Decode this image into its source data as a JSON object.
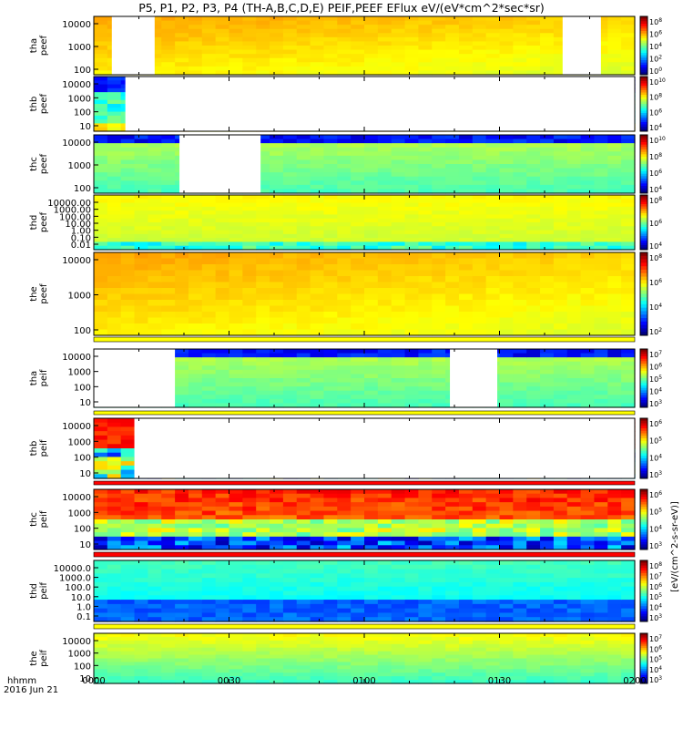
{
  "chart_data": {
    "type": "heatmap",
    "title": "P5, P1, P2, P3, P4 (TH-A,B,C,D,E) PEIF,PEEF EFlux eV/(eV*cm^2*sec*sr)",
    "x_axis": {
      "ticks": [
        "0000",
        "0030",
        "0100",
        "0130",
        "0200"
      ],
      "range_minutes": [
        0,
        120
      ],
      "label_line1": "hhmm",
      "label_line2": "2016 Jun 21"
    },
    "colorbar_label": "[eV/(cm^2-s-sr-eV)]",
    "panels": [
      {
        "name": "thaperef",
        "ylabel1": "tha",
        "ylabel2": "peef",
        "yticks": [
          "10000",
          "1000",
          "100"
        ],
        "cbticks": [
          "10^8",
          "10^6",
          "10^4",
          "10^2",
          "10^0"
        ],
        "gaps_min": [
          [
            4,
            13.5
          ],
          [
            104,
            112.5
          ]
        ],
        "palette": "yellow"
      },
      {
        "name": "thbpeef",
        "ylabel1": "thb",
        "ylabel2": "peef",
        "yticks": [
          "10000",
          "1000",
          "100",
          "10"
        ],
        "cbticks": [
          "10^10",
          "10^8",
          "10^6",
          "10^4"
        ],
        "gaps_min": [
          [
            7,
            120
          ]
        ],
        "palette": "mix"
      },
      {
        "name": "thcpeef",
        "ylabel1": "thc",
        "ylabel2": "peef",
        "yticks": [
          "10000",
          "1000",
          "100"
        ],
        "cbticks": [
          "10^10",
          "10^8",
          "10^6",
          "10^4"
        ],
        "gaps_min": [
          [
            19,
            37
          ]
        ],
        "palette": "green"
      },
      {
        "name": "thdpeef",
        "ylabel1": "thd",
        "ylabel2": "peef",
        "yticks": [
          "10000.00",
          "1000.00",
          "100.00",
          "10.00",
          "1.00",
          "0.10",
          "0.01"
        ],
        "cbticks": [
          "10^8",
          "10^6",
          "10^4"
        ],
        "gaps_min": [],
        "palette": "yellowgreen"
      },
      {
        "name": "thepeef",
        "ylabel1": "the",
        "ylabel2": "peef",
        "yticks": [
          "10000",
          "1000",
          "100"
        ],
        "cbticks": [
          "10^8",
          "10^6",
          "10^4",
          "10^2"
        ],
        "gaps_min": [],
        "palette": "yellow"
      },
      {
        "name": "thapeif",
        "ylabel1": "tha",
        "ylabel2": "peif",
        "yticks": [
          "10000",
          "1000",
          "100",
          "10"
        ],
        "cbticks": [
          "10^7",
          "10^6",
          "10^5",
          "10^4",
          "10^3"
        ],
        "gaps_min": [
          [
            0,
            18
          ],
          [
            79,
            89.5
          ]
        ],
        "palette": "green"
      },
      {
        "name": "thbpeif",
        "ylabel1": "thb",
        "ylabel2": "peif",
        "yticks": [
          "10000",
          "1000",
          "100",
          "10"
        ],
        "cbticks": [
          "10^6",
          "10^5",
          "10^4",
          "10^3"
        ],
        "gaps_min": [
          [
            9,
            120
          ]
        ],
        "palette": "ionmix"
      },
      {
        "name": "thcpeif",
        "ylabel1": "thc",
        "ylabel2": "peif",
        "yticks": [
          "10000",
          "1000",
          "100",
          "10"
        ],
        "cbticks": [
          "10^6",
          "10^5",
          "10^4",
          "10^3"
        ],
        "gaps_min": [],
        "palette": "ion"
      },
      {
        "name": "thdpeif",
        "ylabel1": "thd",
        "ylabel2": "peif",
        "yticks": [
          "10000.0",
          "1000.0",
          "100.0",
          "10.0",
          "1.0",
          "0.1"
        ],
        "cbticks": [
          "10^8",
          "10^7",
          "10^6",
          "10^5",
          "10^4",
          "10^3"
        ],
        "gaps_min": [],
        "palette": "blue"
      },
      {
        "name": "thepeif",
        "ylabel1": "the",
        "ylabel2": "peif",
        "yticks": [
          "10000",
          "1000",
          "100",
          "10"
        ],
        "cbticks": [
          "10^7",
          "10^6",
          "10^5",
          "10^4",
          "10^3"
        ],
        "gaps_min": [],
        "palette": "greenyellow"
      }
    ]
  }
}
